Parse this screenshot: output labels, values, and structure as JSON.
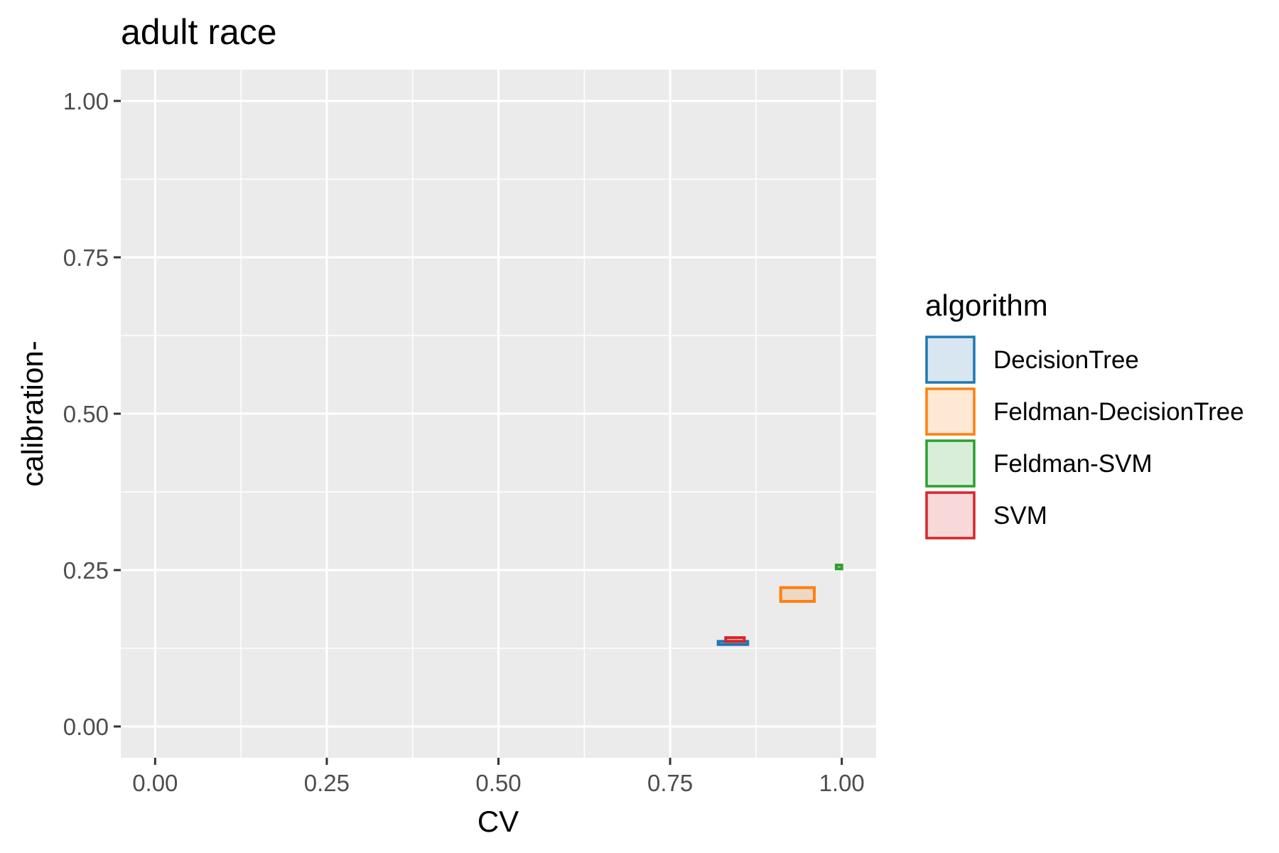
{
  "chart_data": {
    "type": "rect",
    "title": "adult race",
    "xlabel": "CV",
    "ylabel": "calibration-",
    "xlim": [
      -0.05,
      1.05
    ],
    "ylim": [
      -0.05,
      1.05
    ],
    "x_ticks": [
      0.0,
      0.25,
      0.5,
      0.75,
      1.0
    ],
    "x_tick_labels": [
      "0.00",
      "0.25",
      "0.50",
      "0.75",
      "1.00"
    ],
    "y_ticks": [
      0.0,
      0.25,
      0.5,
      0.75,
      1.0
    ],
    "y_tick_labels": [
      "0.00",
      "0.25",
      "0.50",
      "0.75",
      "1.00"
    ],
    "grid": true,
    "legend": {
      "title": "algorithm",
      "position": "right",
      "entries": [
        {
          "name": "DecisionTree",
          "color": "#1f77b4"
        },
        {
          "name": "Feldman-DecisionTree",
          "color": "#ff7f0e"
        },
        {
          "name": "Feldman-SVM",
          "color": "#2ca02c"
        },
        {
          "name": "SVM",
          "color": "#d62728"
        }
      ]
    },
    "series": [
      {
        "name": "DecisionTree",
        "color": "#1f77b4",
        "xmin": 0.82,
        "xmax": 0.863,
        "ymin": 0.131,
        "ymax": 0.136
      },
      {
        "name": "Feldman-DecisionTree",
        "color": "#ff7f0e",
        "xmin": 0.911,
        "xmax": 0.96,
        "ymin": 0.2,
        "ymax": 0.222
      },
      {
        "name": "Feldman-SVM",
        "color": "#2ca02c",
        "xmin": 0.992,
        "xmax": 1.0,
        "ymin": 0.252,
        "ymax": 0.258
      },
      {
        "name": "SVM",
        "color": "#d62728",
        "xmin": 0.831,
        "xmax": 0.858,
        "ymin": 0.136,
        "ymax": 0.142
      }
    ]
  }
}
